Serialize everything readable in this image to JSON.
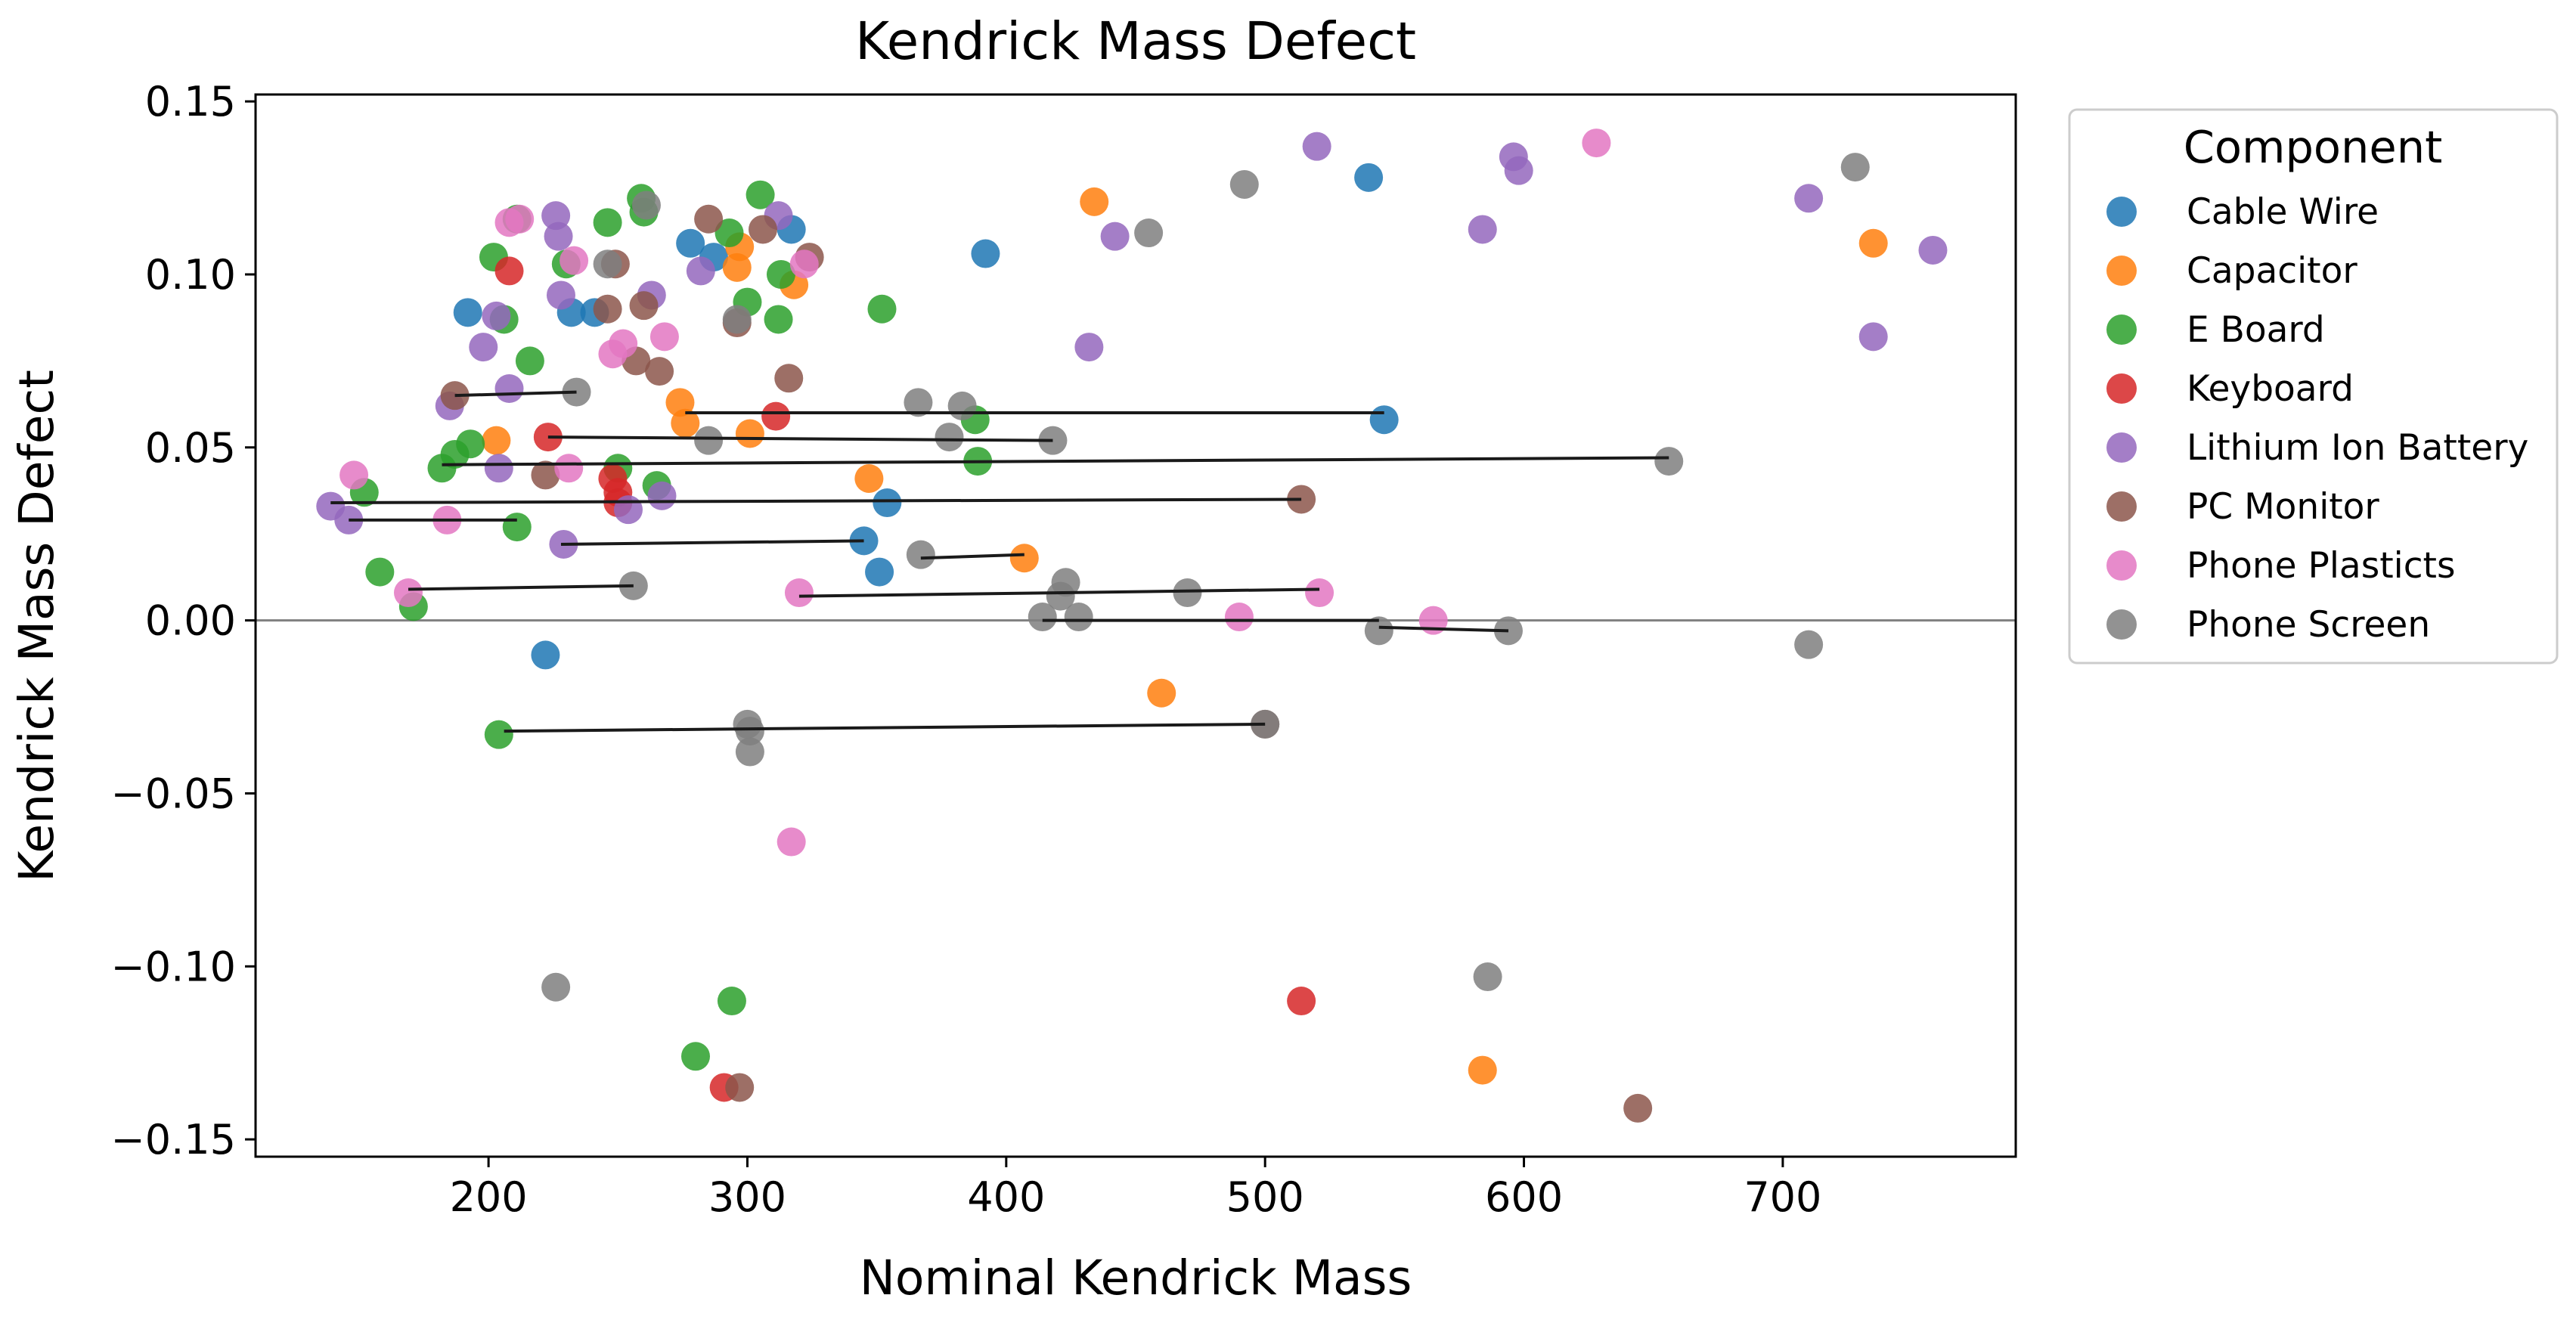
{
  "chart_data": {
    "type": "scatter",
    "title": "Kendrick Mass Defect",
    "xlabel": "Nominal Kendrick Mass",
    "ylabel": "Kendrick Mass Defect",
    "xlim": [
      110,
      790
    ],
    "ylim": [
      -0.155,
      0.152
    ],
    "xticks": [
      200,
      300,
      400,
      500,
      600,
      700
    ],
    "xtick_labels": [
      "200",
      "300",
      "400",
      "500",
      "600",
      "700"
    ],
    "yticks": [
      0.15,
      0.1,
      0.05,
      0.0,
      -0.05,
      -0.1,
      -0.15
    ],
    "ytick_labels": [
      "0.15",
      "0.10",
      "0.05",
      "0.00",
      "−0.05",
      "−0.10",
      "−0.15"
    ],
    "reference_line_y": 0.0,
    "legend": {
      "title": "Component",
      "placement": "upper right outside"
    },
    "series": [
      {
        "name": "Cable Wire",
        "color": "#1f77b4",
        "x": [
          192,
          222,
          232,
          241,
          278,
          287,
          317,
          345,
          351,
          354,
          392,
          540,
          546
        ],
        "y": [
          0.089,
          -0.01,
          0.089,
          0.089,
          0.109,
          0.105,
          0.113,
          0.023,
          0.014,
          0.034,
          0.106,
          0.128,
          0.058
        ]
      },
      {
        "name": "Capacitor",
        "color": "#ff7f0e",
        "x": [
          203,
          274,
          276,
          296,
          297,
          301,
          318,
          347,
          407,
          434,
          460,
          584,
          735
        ],
        "y": [
          0.052,
          0.063,
          0.057,
          0.102,
          0.108,
          0.054,
          0.097,
          0.041,
          0.018,
          0.121,
          -0.021,
          -0.13,
          0.109
        ]
      },
      {
        "name": "E Board",
        "color": "#2ca02c",
        "x": [
          152,
          158,
          171,
          182,
          187,
          193,
          202,
          204,
          206,
          211,
          211,
          216,
          230,
          246,
          250,
          259,
          260,
          265,
          280,
          293,
          294,
          300,
          305,
          312,
          313,
          352,
          388,
          389
        ],
        "y": [
          0.037,
          0.014,
          0.004,
          0.044,
          0.048,
          0.051,
          0.105,
          -0.033,
          0.087,
          0.116,
          0.027,
          0.075,
          0.103,
          0.115,
          0.044,
          0.122,
          0.118,
          0.039,
          -0.126,
          0.112,
          -0.11,
          0.092,
          0.123,
          0.087,
          0.1,
          0.09,
          0.058,
          0.046
        ]
      },
      {
        "name": "Keyboard",
        "color": "#d62728",
        "x": [
          208,
          223,
          248,
          250,
          250,
          291,
          311,
          514
        ],
        "y": [
          0.101,
          0.053,
          0.041,
          0.037,
          0.034,
          -0.135,
          0.059,
          -0.11
        ]
      },
      {
        "name": "Lithium Ion Battery",
        "color": "#9467bd",
        "x": [
          139,
          146,
          185,
          198,
          203,
          204,
          208,
          226,
          227,
          228,
          229,
          254,
          263,
          267,
          282,
          312,
          432,
          442,
          520,
          584,
          596,
          598,
          710,
          735,
          758
        ],
        "y": [
          0.033,
          0.029,
          0.062,
          0.079,
          0.088,
          0.044,
          0.067,
          0.117,
          0.111,
          0.094,
          0.022,
          0.032,
          0.094,
          0.036,
          0.101,
          0.117,
          0.079,
          0.111,
          0.137,
          0.113,
          0.134,
          0.13,
          0.122,
          0.082,
          0.107
        ]
      },
      {
        "name": "PC Monitor",
        "color": "#8c564b",
        "x": [
          187,
          222,
          246,
          249,
          257,
          260,
          266,
          285,
          296,
          297,
          306,
          316,
          324,
          500,
          514,
          644
        ],
        "y": [
          0.065,
          0.042,
          0.09,
          0.103,
          0.075,
          0.091,
          0.072,
          0.116,
          0.086,
          -0.135,
          0.113,
          0.07,
          0.105,
          -0.03,
          0.035,
          -0.141
        ]
      },
      {
        "name": "Phone Plasticts",
        "color": "#e377c2",
        "x": [
          148,
          169,
          184,
          208,
          212,
          231,
          233,
          248,
          252,
          268,
          317,
          320,
          322,
          490,
          521,
          565,
          628
        ],
        "y": [
          0.042,
          0.008,
          0.029,
          0.115,
          0.116,
          0.044,
          0.104,
          0.077,
          0.08,
          0.082,
          -0.064,
          0.008,
          0.103,
          0.001,
          0.008,
          0.0,
          0.138
        ]
      },
      {
        "name": "Phone Screen",
        "color": "#7f7f7f",
        "x": [
          226,
          234,
          246,
          256,
          261,
          285,
          296,
          300,
          301,
          301,
          366,
          367,
          378,
          383,
          418,
          414,
          421,
          423,
          428,
          455,
          470,
          492,
          500,
          544,
          586,
          594,
          656,
          710,
          728
        ],
        "y": [
          -0.106,
          0.066,
          0.103,
          0.01,
          0.12,
          0.052,
          0.087,
          -0.03,
          -0.032,
          -0.038,
          0.063,
          0.019,
          0.053,
          0.062,
          0.052,
          0.001,
          0.007,
          0.011,
          0.001,
          0.112,
          0.008,
          0.126,
          -0.03,
          -0.003,
          -0.103,
          -0.003,
          0.046,
          -0.007,
          0.131
        ]
      }
    ],
    "connector_lines": [
      {
        "x": [
          187,
          234
        ],
        "y": [
          0.065,
          0.066
        ]
      },
      {
        "x": [
          223,
          418
        ],
        "y": [
          0.053,
          0.052
        ]
      },
      {
        "x": [
          276,
          546
        ],
        "y": [
          0.06,
          0.06
        ]
      },
      {
        "x": [
          182,
          656
        ],
        "y": [
          0.045,
          0.047
        ]
      },
      {
        "x": [
          139,
          514
        ],
        "y": [
          0.034,
          0.035
        ]
      },
      {
        "x": [
          146,
          211
        ],
        "y": [
          0.029,
          0.029
        ]
      },
      {
        "x": [
          228,
          345
        ],
        "y": [
          0.022,
          0.023
        ]
      },
      {
        "x": [
          367,
          407
        ],
        "y": [
          0.018,
          0.019
        ]
      },
      {
        "x": [
          169,
          256
        ],
        "y": [
          0.009,
          0.01
        ]
      },
      {
        "x": [
          320,
          521
        ],
        "y": [
          0.007,
          0.009
        ]
      },
      {
        "x": [
          414,
          544
        ],
        "y": [
          0.0,
          0.0
        ]
      },
      {
        "x": [
          544,
          594
        ],
        "y": [
          -0.002,
          -0.003
        ]
      },
      {
        "x": [
          206,
          500
        ],
        "y": [
          -0.032,
          -0.03
        ]
      }
    ]
  }
}
